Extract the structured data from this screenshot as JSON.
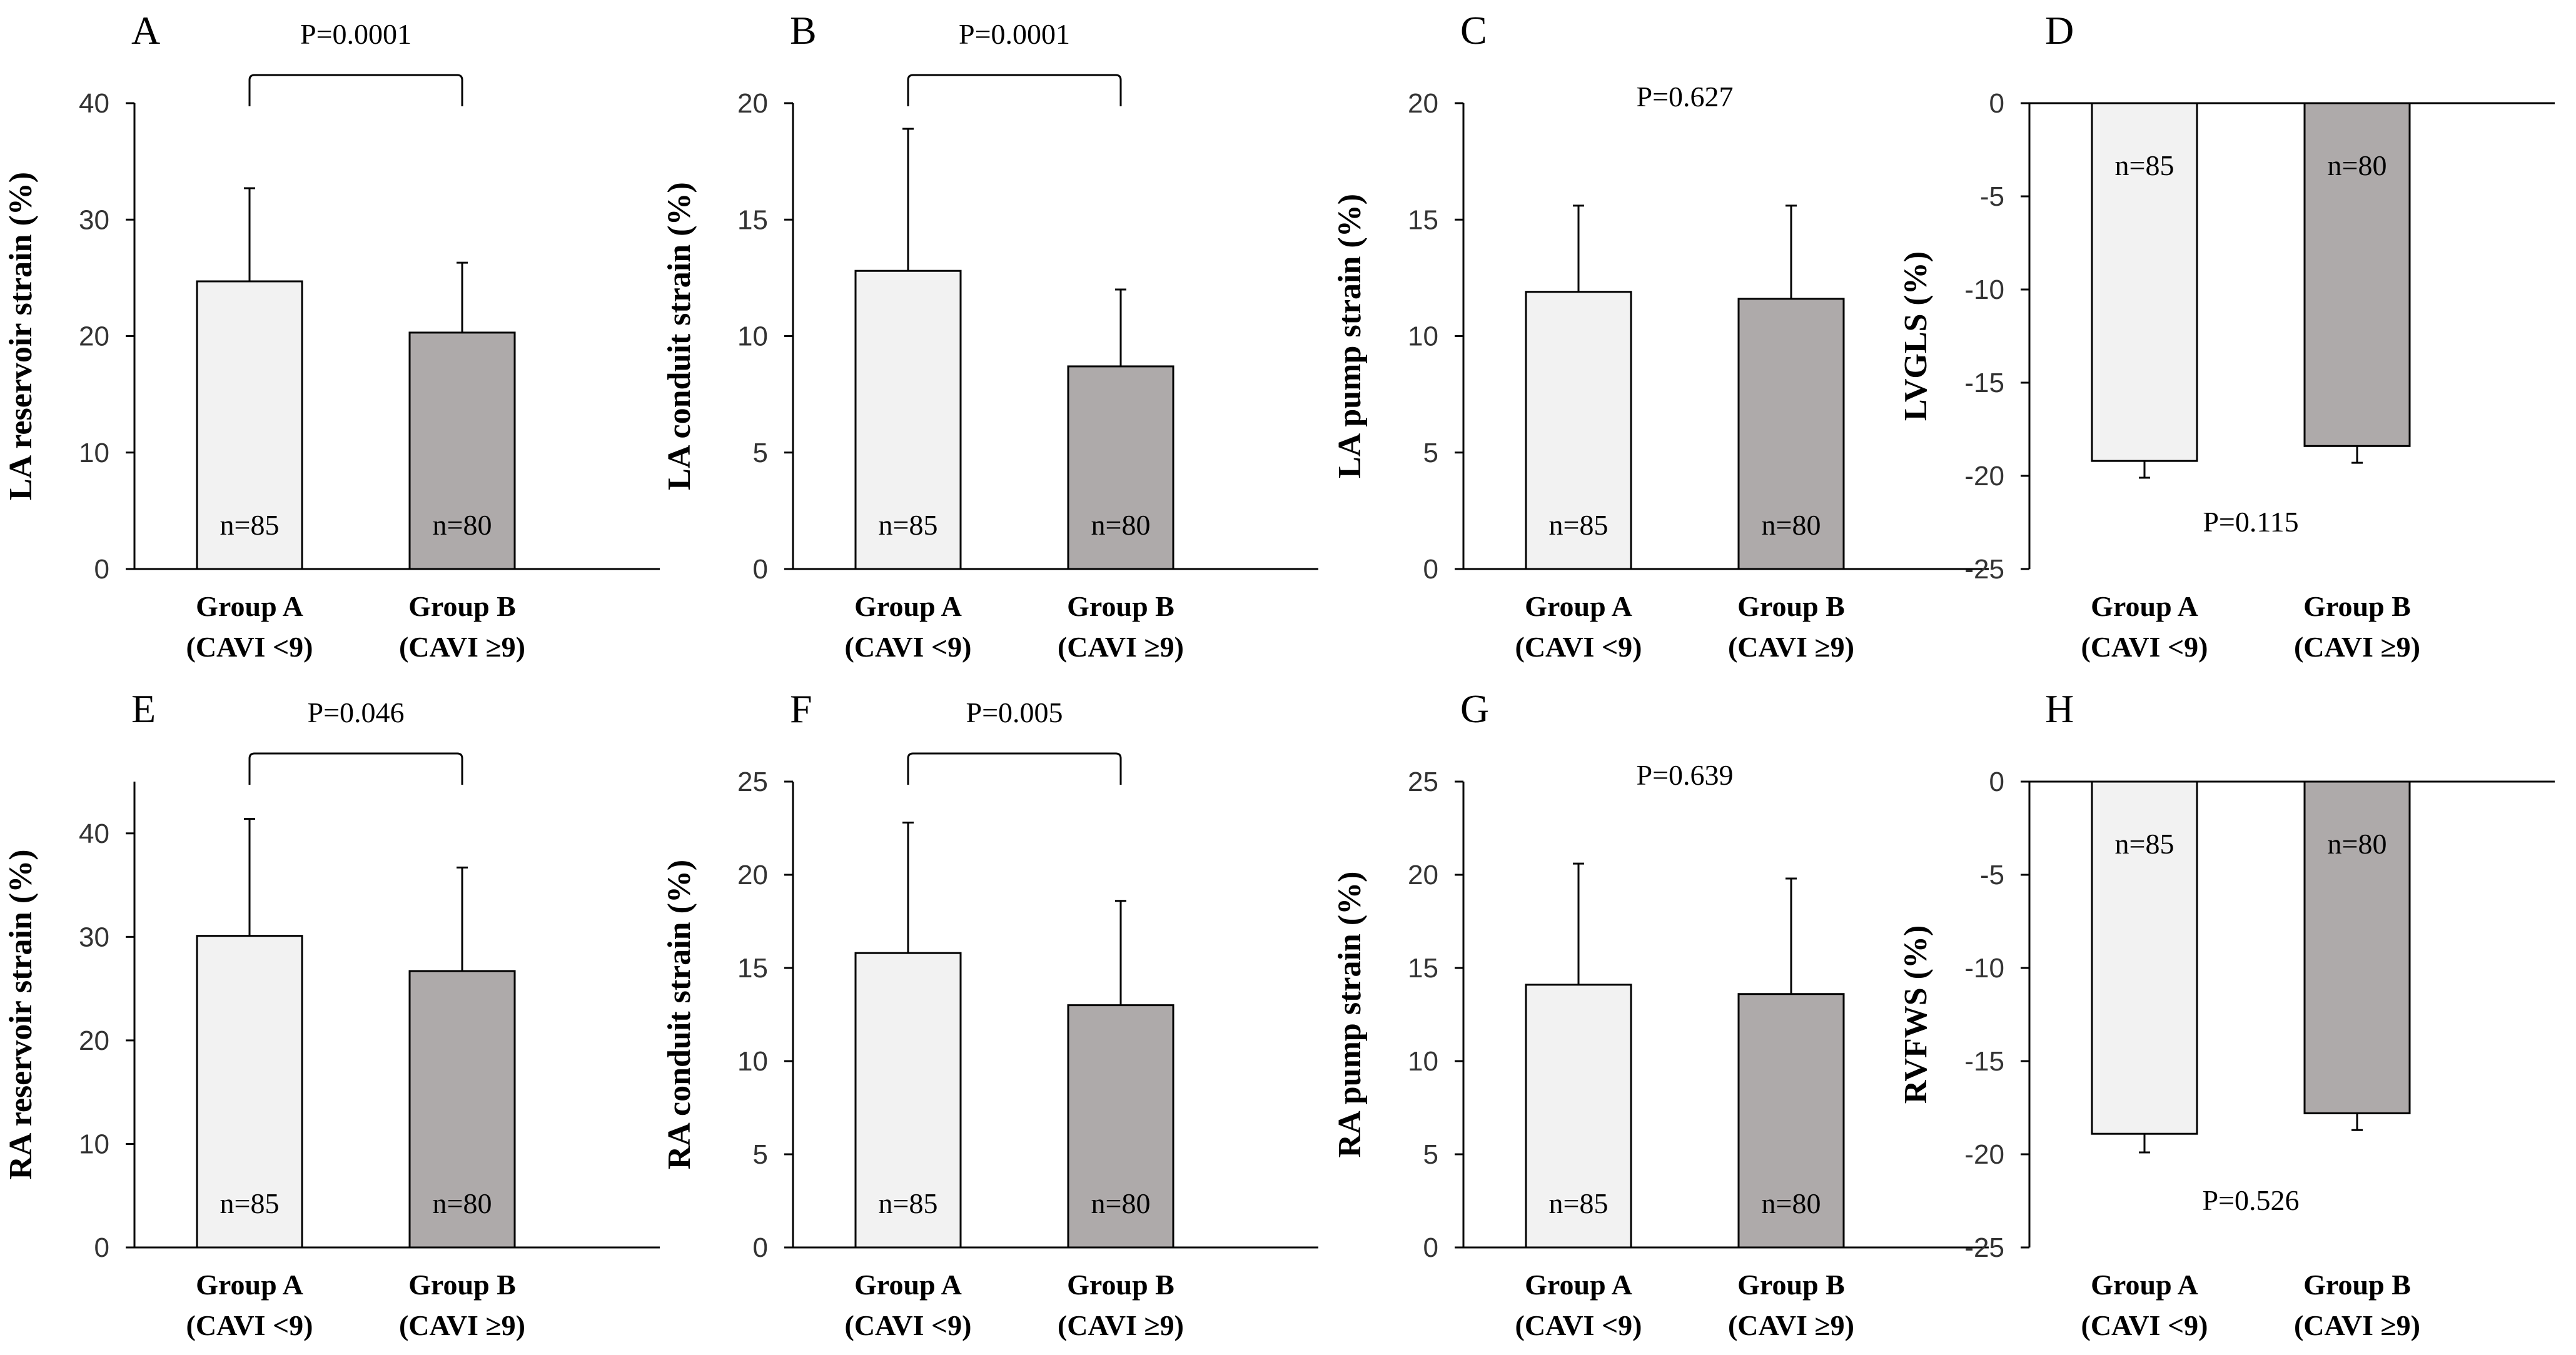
{
  "colors": {
    "group_a_fill": "#f2f2f2",
    "group_b_fill": "#aeaaaa",
    "stroke": "#000000"
  },
  "chart_data": [
    {
      "panel": "A",
      "type": "bar",
      "ylabel": "LA reservoir strain (%)",
      "yticks": [
        0,
        10,
        20,
        30,
        40
      ],
      "ylim": [
        0,
        40
      ],
      "categories": [
        [
          "Group A",
          "(CAVI <9)"
        ],
        [
          "Group B",
          "(CAVI ≥9)"
        ]
      ],
      "values": [
        24.7,
        20.3
      ],
      "errors": [
        8.0,
        6.0
      ],
      "n_labels": [
        "n=85",
        "n=80"
      ],
      "p_value": "P=0.0001",
      "bracket": true
    },
    {
      "panel": "B",
      "type": "bar",
      "ylabel": "LA conduit strain (%)",
      "yticks": [
        0,
        5,
        10,
        15,
        20
      ],
      "ylim": [
        0,
        20
      ],
      "categories": [
        [
          "Group A",
          "(CAVI <9)"
        ],
        [
          "Group B",
          "(CAVI ≥9)"
        ]
      ],
      "values": [
        12.8,
        8.7
      ],
      "errors": [
        6.1,
        3.3
      ],
      "n_labels": [
        "n=85",
        "n=80"
      ],
      "p_value": "P=0.0001",
      "bracket": true
    },
    {
      "panel": "C",
      "type": "bar",
      "ylabel": "LA pump strain (%)",
      "yticks": [
        0,
        5,
        10,
        15,
        20
      ],
      "ylim": [
        0,
        20
      ],
      "categories": [
        [
          "Group A",
          "(CAVI <9)"
        ],
        [
          "Group B",
          "(CAVI ≥9)"
        ]
      ],
      "values": [
        11.9,
        11.6
      ],
      "errors": [
        3.7,
        4.0
      ],
      "n_labels": [
        "n=85",
        "n=80"
      ],
      "p_value": "P=0.627",
      "bracket": false
    },
    {
      "panel": "D",
      "type": "bar",
      "ylabel": "LVGLS (%)",
      "yticks": [
        0,
        -5,
        -10,
        -15,
        -20,
        -25
      ],
      "ylim": [
        -25,
        0
      ],
      "categories": [
        [
          "Group A",
          "(CAVI <9)"
        ],
        [
          "Group B",
          "(CAVI ≥9)"
        ]
      ],
      "values": [
        -19.2,
        -18.4
      ],
      "errors": [
        0.9,
        0.9
      ],
      "n_labels": [
        "n=85",
        "n=80"
      ],
      "p_value": "P=0.115",
      "bracket": false
    },
    {
      "panel": "E",
      "type": "bar",
      "ylabel": "RA reservoir strain (%)",
      "yticks": [
        0,
        10,
        20,
        30,
        40
      ],
      "ylim": [
        0,
        45
      ],
      "categories": [
        [
          "Group A",
          "(CAVI <9)"
        ],
        [
          "Group B",
          "(CAVI ≥9)"
        ]
      ],
      "values": [
        30.1,
        26.7
      ],
      "errors": [
        11.3,
        10.0
      ],
      "n_labels": [
        "n=85",
        "n=80"
      ],
      "p_value": "P=0.046",
      "bracket": true
    },
    {
      "panel": "F",
      "type": "bar",
      "ylabel": "RA conduit strain (%)",
      "yticks": [
        0,
        5,
        10,
        15,
        20,
        25
      ],
      "ylim": [
        0,
        25
      ],
      "categories": [
        [
          "Group A",
          "(CAVI <9)"
        ],
        [
          "Group B",
          "(CAVI ≥9)"
        ]
      ],
      "values": [
        15.8,
        13.0
      ],
      "errors": [
        7.0,
        5.6
      ],
      "n_labels": [
        "n=85",
        "n=80"
      ],
      "p_value": "P=0.005",
      "bracket": true
    },
    {
      "panel": "G",
      "type": "bar",
      "ylabel": "RA pump strain (%)",
      "yticks": [
        0,
        5,
        10,
        15,
        20,
        25
      ],
      "ylim": [
        0,
        25
      ],
      "categories": [
        [
          "Group A",
          "(CAVI <9)"
        ],
        [
          "Group B",
          "(CAVI ≥9)"
        ]
      ],
      "values": [
        14.1,
        13.6
      ],
      "errors": [
        6.5,
        6.2
      ],
      "n_labels": [
        "n=85",
        "n=80"
      ],
      "p_value": "P=0.639",
      "bracket": false
    },
    {
      "panel": "H",
      "type": "bar",
      "ylabel": "RVFWS (%)",
      "yticks": [
        0,
        -5,
        -10,
        -15,
        -20,
        -25
      ],
      "ylim": [
        -25,
        0
      ],
      "categories": [
        [
          "Group A",
          "(CAVI <9)"
        ],
        [
          "Group B",
          "(CAVI ≥9)"
        ]
      ],
      "values": [
        -18.9,
        -17.8
      ],
      "errors": [
        1.0,
        0.9
      ],
      "n_labels": [
        "n=85",
        "n=80"
      ],
      "p_value": "P=0.526",
      "bracket": false
    }
  ]
}
